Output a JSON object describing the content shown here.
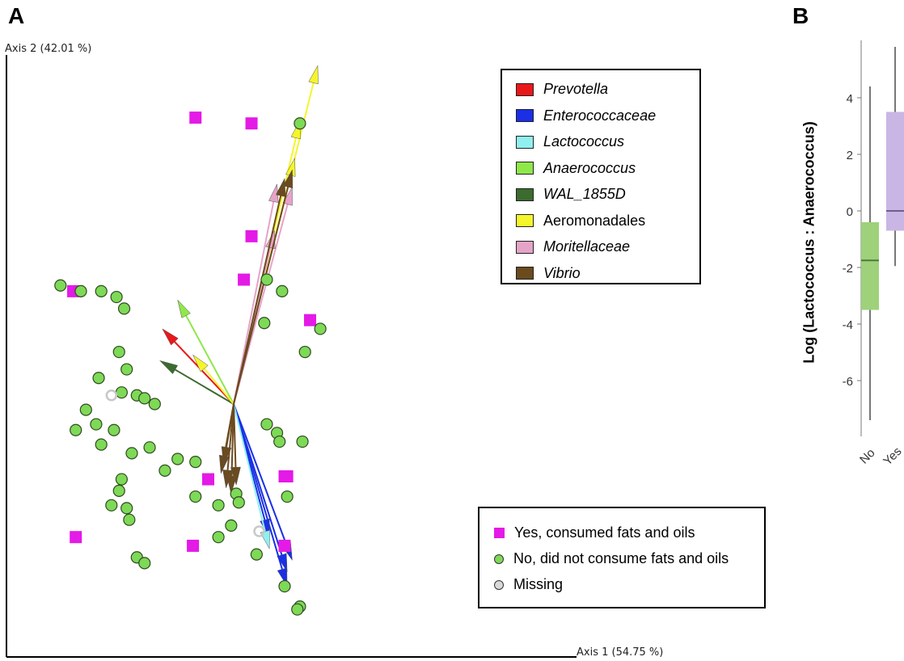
{
  "panel_a_label": "A",
  "panel_b_label": "B",
  "chart_data": [
    {
      "type": "scatter",
      "title": "",
      "xlabel": "Axis 1 (54.75 %)",
      "ylabel": "Axis 2 (42.01 %)",
      "xlim": [
        -1,
        1
      ],
      "ylim": [
        -1,
        1
      ],
      "grid": false,
      "origin": [
        0,
        0
      ],
      "taxa_legend_position": "top-right",
      "group_legend_position": "bottom-right",
      "taxa_legend": [
        {
          "name": "Prevotella",
          "color": "#e8181b",
          "italic": true
        },
        {
          "name": "Enterococcaceae",
          "color": "#1a2fe6",
          "italic": true
        },
        {
          "name": "Lactococcus",
          "color": "#8ff0ef",
          "italic": true
        },
        {
          "name": "Anaerococcus",
          "color": "#8fe84a",
          "italic": true
        },
        {
          "name": "WAL_1855D",
          "color": "#3b6b2e",
          "italic": true
        },
        {
          "name": "Aeromonadales",
          "color": "#f5f52b",
          "italic": false
        },
        {
          "name": "Moritellaceae",
          "color": "#e6a3c8",
          "italic": true
        },
        {
          "name": "Vibrio",
          "color": "#6b4a1e",
          "italic": true
        }
      ],
      "group_legend": [
        {
          "label": "Yes, consumed fats and oils",
          "color": "#e41ae6",
          "shape": "square"
        },
        {
          "label": "No, did not consume fats and oils",
          "color": "#7ed957",
          "shape": "circle"
        },
        {
          "label": "Missing",
          "color": "#d9d9d9",
          "shape": "circle"
        }
      ],
      "arrows": [
        {
          "taxon": "Prevotella",
          "color": "#e8181b",
          "x": -0.28,
          "y": 0.26
        },
        {
          "taxon": "Anaerococcus",
          "color": "#8fe84a",
          "x": -0.22,
          "y": 0.36
        },
        {
          "taxon": "WAL_1855D",
          "color": "#3b6b2e",
          "x": -0.29,
          "y": 0.15
        },
        {
          "taxon": "Aeromonadales",
          "color": "#f5f52b",
          "x": -0.16,
          "y": 0.17
        },
        {
          "taxon": "Aeromonadales",
          "color": "#f5f52b",
          "x": 0.33,
          "y": 1.17
        },
        {
          "taxon": "Aeromonadales",
          "color": "#f5f52b",
          "x": 0.26,
          "y": 0.98
        },
        {
          "taxon": "Aeromonadales",
          "color": "#f5f52b",
          "x": 0.24,
          "y": 0.85
        },
        {
          "taxon": "Moritellaceae",
          "color": "#e6a3c8",
          "x": 0.23,
          "y": 0.75
        },
        {
          "taxon": "Moritellaceae",
          "color": "#e6a3c8",
          "x": 0.16,
          "y": 0.6
        },
        {
          "taxon": "Moritellaceae",
          "color": "#e6a3c8",
          "x": 0.17,
          "y": 0.76
        },
        {
          "taxon": "Vibrio",
          "color": "#6b4a1e",
          "x": 0.2,
          "y": 0.78
        },
        {
          "taxon": "Vibrio",
          "color": "#6b4a1e",
          "x": 0.23,
          "y": 0.81
        },
        {
          "taxon": "Enterococcaceae",
          "color": "#1a2fe6",
          "x": 0.23,
          "y": -0.54
        },
        {
          "taxon": "Enterococcaceae",
          "color": "#1a2fe6",
          "x": 0.21,
          "y": -0.58
        },
        {
          "taxon": "Enterococcaceae",
          "color": "#1a2fe6",
          "x": 0.21,
          "y": -0.63
        },
        {
          "taxon": "Enterococcaceae",
          "color": "#1a2fe6",
          "x": 0.14,
          "y": -0.46
        },
        {
          "taxon": "Lactococcus",
          "color": "#8ff0ef",
          "x": 0.14,
          "y": -0.5
        },
        {
          "taxon": "Vibrio",
          "color": "#6b4a1e",
          "x": -0.05,
          "y": -0.24
        },
        {
          "taxon": "Vibrio",
          "color": "#6b4a1e",
          "x": -0.03,
          "y": -0.29
        },
        {
          "taxon": "Vibrio",
          "color": "#6b4a1e",
          "x": -0.01,
          "y": -0.31
        },
        {
          "taxon": "Vibrio",
          "color": "#6b4a1e",
          "x": 0.01,
          "y": -0.28
        },
        {
          "taxon": "Vibrio",
          "color": "#6b4a1e",
          "x": -0.04,
          "y": -0.21
        }
      ],
      "points": [
        {
          "group": "Yes",
          "x": -0.15,
          "y": 0.99
        },
        {
          "group": "Yes",
          "x": 0.07,
          "y": 0.97
        },
        {
          "group": "Yes",
          "x": 0.07,
          "y": 0.58
        },
        {
          "group": "Yes",
          "x": 0.04,
          "y": 0.43
        },
        {
          "group": "Yes",
          "x": -0.63,
          "y": 0.39
        },
        {
          "group": "Yes",
          "x": 0.3,
          "y": 0.29
        },
        {
          "group": "Yes",
          "x": 0.21,
          "y": -0.25
        },
        {
          "group": "Yes",
          "x": 0.2,
          "y": -0.25
        },
        {
          "group": "Yes",
          "x": -0.1,
          "y": -0.26
        },
        {
          "group": "Yes",
          "x": 0.2,
          "y": -0.49
        },
        {
          "group": "Yes",
          "x": -0.62,
          "y": -0.46
        },
        {
          "group": "Yes",
          "x": -0.16,
          "y": -0.49
        },
        {
          "group": "No",
          "x": 0.26,
          "y": 0.97
        },
        {
          "group": "No",
          "x": -0.68,
          "y": 0.41
        },
        {
          "group": "No",
          "x": -0.6,
          "y": 0.39
        },
        {
          "group": "No",
          "x": -0.52,
          "y": 0.39
        },
        {
          "group": "No",
          "x": -0.46,
          "y": 0.37
        },
        {
          "group": "No",
          "x": -0.43,
          "y": 0.33
        },
        {
          "group": "No",
          "x": 0.13,
          "y": 0.43
        },
        {
          "group": "No",
          "x": 0.19,
          "y": 0.39
        },
        {
          "group": "No",
          "x": 0.12,
          "y": 0.28
        },
        {
          "group": "No",
          "x": 0.28,
          "y": 0.18
        },
        {
          "group": "No",
          "x": -0.45,
          "y": 0.18
        },
        {
          "group": "No",
          "x": -0.42,
          "y": 0.12
        },
        {
          "group": "No",
          "x": -0.53,
          "y": 0.09
        },
        {
          "group": "No",
          "x": -0.44,
          "y": 0.04
        },
        {
          "group": "No",
          "x": -0.38,
          "y": 0.03
        },
        {
          "group": "No",
          "x": -0.35,
          "y": 0.02
        },
        {
          "group": "No",
          "x": -0.31,
          "y": 0.0
        },
        {
          "group": "No",
          "x": -0.58,
          "y": -0.02
        },
        {
          "group": "No",
          "x": -0.54,
          "y": -0.07
        },
        {
          "group": "No",
          "x": -0.47,
          "y": -0.09
        },
        {
          "group": "No",
          "x": -0.52,
          "y": -0.14
        },
        {
          "group": "No",
          "x": -0.4,
          "y": -0.17
        },
        {
          "group": "No",
          "x": -0.33,
          "y": -0.15
        },
        {
          "group": "No",
          "x": 0.13,
          "y": -0.07
        },
        {
          "group": "No",
          "x": 0.17,
          "y": -0.1
        },
        {
          "group": "No",
          "x": 0.18,
          "y": -0.13
        },
        {
          "group": "No",
          "x": -0.27,
          "y": -0.23
        },
        {
          "group": "No",
          "x": -0.22,
          "y": -0.19
        },
        {
          "group": "No",
          "x": -0.15,
          "y": -0.2
        },
        {
          "group": "No",
          "x": -0.45,
          "y": -0.3
        },
        {
          "group": "No",
          "x": -0.48,
          "y": -0.35
        },
        {
          "group": "No",
          "x": -0.42,
          "y": -0.36
        },
        {
          "group": "No",
          "x": -0.15,
          "y": -0.32
        },
        {
          "group": "No",
          "x": -0.06,
          "y": -0.35
        },
        {
          "group": "No",
          "x": 0.01,
          "y": -0.31
        },
        {
          "group": "No",
          "x": 0.02,
          "y": -0.34
        },
        {
          "group": "No",
          "x": 0.21,
          "y": -0.32
        },
        {
          "group": "No",
          "x": -0.01,
          "y": -0.42
        },
        {
          "group": "No",
          "x": -0.06,
          "y": -0.46
        },
        {
          "group": "No",
          "x": -0.38,
          "y": -0.53
        },
        {
          "group": "No",
          "x": -0.35,
          "y": -0.55
        },
        {
          "group": "No",
          "x": 0.09,
          "y": -0.52
        },
        {
          "group": "No",
          "x": -0.62,
          "y": -0.09
        },
        {
          "group": "No",
          "x": -0.44,
          "y": -0.26
        },
        {
          "group": "No",
          "x": -0.41,
          "y": -0.4
        },
        {
          "group": "No",
          "x": 0.34,
          "y": 0.26
        },
        {
          "group": "No",
          "x": 0.27,
          "y": -0.13
        },
        {
          "group": "No",
          "x": 0.2,
          "y": -0.63
        },
        {
          "group": "No",
          "x": 0.26,
          "y": -0.7
        },
        {
          "group": "No",
          "x": 0.25,
          "y": -0.71
        },
        {
          "group": "Missing",
          "x": -0.48,
          "y": 0.03
        },
        {
          "group": "Missing",
          "x": 0.1,
          "y": -0.44
        }
      ]
    },
    {
      "type": "box",
      "title": "",
      "ylabel": "Log (Lactococcus : Anaerococcus)",
      "categories": [
        "No",
        "Yes"
      ],
      "yticks": [
        4,
        2,
        0,
        -2,
        -4,
        -6
      ],
      "ylim": [
        -8,
        6
      ],
      "boxes": [
        {
          "category": "No",
          "color": "#9ed17a",
          "median_color": "#4e7a3a",
          "whisker_low": -7.4,
          "q1": -3.5,
          "median": -1.75,
          "q3": -0.4,
          "whisker_high": 4.4
        },
        {
          "category": "Yes",
          "color": "#c9b6e4",
          "median_color": "#6d5f8c",
          "whisker_low": -1.95,
          "q1": -0.7,
          "median": 0.0,
          "q3": 3.5,
          "whisker_high": 5.8
        }
      ]
    }
  ]
}
